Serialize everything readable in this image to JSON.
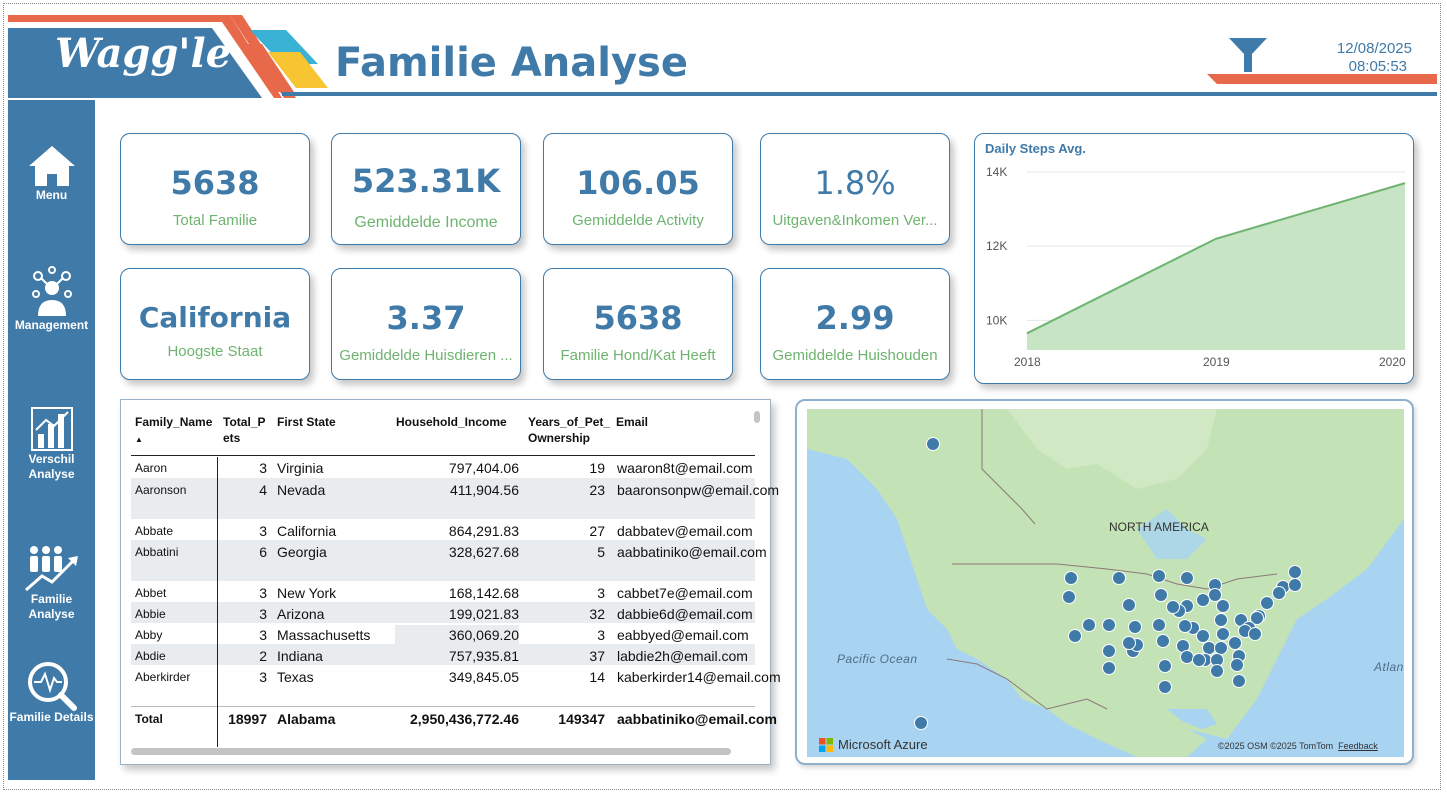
{
  "header": {
    "logo": "Wagg'le",
    "title": "Familie Analyse",
    "date": "12/08/2025",
    "time": "08:05:53"
  },
  "colors": {
    "primary": "#3f7aa8",
    "accent_red": "#e8684a",
    "accent_yellow": "#f7c531",
    "accent_cyan": "#3ab2d6",
    "kpi_label": "#6fb370",
    "chart_fill": "#c7e4c4",
    "chart_line": "#6fb370"
  },
  "sidebar": {
    "items": [
      {
        "label": "Menu",
        "icon": "home-icon"
      },
      {
        "label": "Management",
        "icon": "people-network-icon"
      },
      {
        "label": "Verschil Analyse",
        "icon": "bar-chart-icon"
      },
      {
        "label": "Familie Analyse",
        "icon": "family-trend-icon"
      },
      {
        "label": "Familie Details",
        "icon": "magnifier-pulse-icon"
      }
    ]
  },
  "kpis": [
    {
      "value": "5638",
      "label": "Total Familie"
    },
    {
      "value": "523.31K",
      "label": "Gemiddelde Income"
    },
    {
      "value": "106.05",
      "label": "Gemiddelde Activity"
    },
    {
      "value": "1.8%",
      "label": "Uitgaven&Inkomen Ver..."
    },
    {
      "value": "California",
      "label": "Hoogste Staat"
    },
    {
      "value": "3.37",
      "label": "Gemiddelde Huisdieren ..."
    },
    {
      "value": "5638",
      "label": "Familie Hond/Kat Heeft"
    },
    {
      "value": "2.99",
      "label": "Gemiddelde Huishouden"
    }
  ],
  "chart_data": {
    "type": "area",
    "title": "Daily Steps Avg.",
    "x": [
      "2018",
      "2019",
      "2020"
    ],
    "y_ticks": [
      "10K",
      "12K",
      "14K"
    ],
    "values": [
      9650,
      12200,
      13700
    ],
    "ylim": [
      9200,
      14000
    ],
    "xlabel": "",
    "ylabel": "",
    "grid": true,
    "legend": "none"
  },
  "table": {
    "columns": [
      "Family_Name",
      "Total_Pets",
      "First State",
      "Household_Income",
      "Years_of_Pet_Ownership",
      "Email"
    ],
    "column_display": [
      "Family_Name",
      "Total_P ets",
      "First State",
      "Household_Income",
      "Years_of_Pet_ Ownership",
      "Email"
    ],
    "rows": [
      {
        "name": "Aaron",
        "pets": "3",
        "state": "Virginia",
        "income": "797,404.06",
        "years": "19",
        "email": "waaron8t@email.com"
      },
      {
        "name": "Aaronson",
        "pets": "4",
        "state": "Nevada",
        "income": "411,904.56",
        "years": "23",
        "email": "baaronsonpw@email.com"
      },
      {
        "name": "Abbate",
        "pets": "3",
        "state": "California",
        "income": "864,291.83",
        "years": "27",
        "email": "dabbatev@email.com"
      },
      {
        "name": "Abbatini",
        "pets": "6",
        "state": "Georgia",
        "income": "328,627.68",
        "years": "5",
        "email": "aabbatiniko@email.com"
      },
      {
        "name": "Abbet",
        "pets": "3",
        "state": "New York",
        "income": "168,142.68",
        "years": "3",
        "email": "cabbet7e@email.com"
      },
      {
        "name": "Abbie",
        "pets": "3",
        "state": "Arizona",
        "income": "199,021.83",
        "years": "32",
        "email": "dabbie6d@email.com"
      },
      {
        "name": "Abby",
        "pets": "3",
        "state": "Massachusetts",
        "income": "360,069.20",
        "years": "3",
        "email": "eabbyed@email.com"
      },
      {
        "name": "Abdie",
        "pets": "2",
        "state": "Indiana",
        "income": "757,935.81",
        "years": "37",
        "email": "labdie2h@email.com"
      },
      {
        "name": "Aberkirder",
        "pets": "3",
        "state": "Texas",
        "income": "349,845.05",
        "years": "14",
        "email": "kaberkirder14@email.com"
      }
    ],
    "total": {
      "name": "Total",
      "pets": "18997",
      "state": "Alabama",
      "income": "2,950,436,772.46",
      "years": "149347",
      "email": "aabbatiniko@email.com"
    }
  },
  "map": {
    "labels": {
      "continent": "NORTH AMERICA",
      "ocean_west": "Pacific Ocean",
      "ocean_east": "Atlan"
    },
    "brand": "Microsoft Azure",
    "attribution": "©2025 OSM  ©2025 TomTom",
    "feedback": "Feedback"
  }
}
